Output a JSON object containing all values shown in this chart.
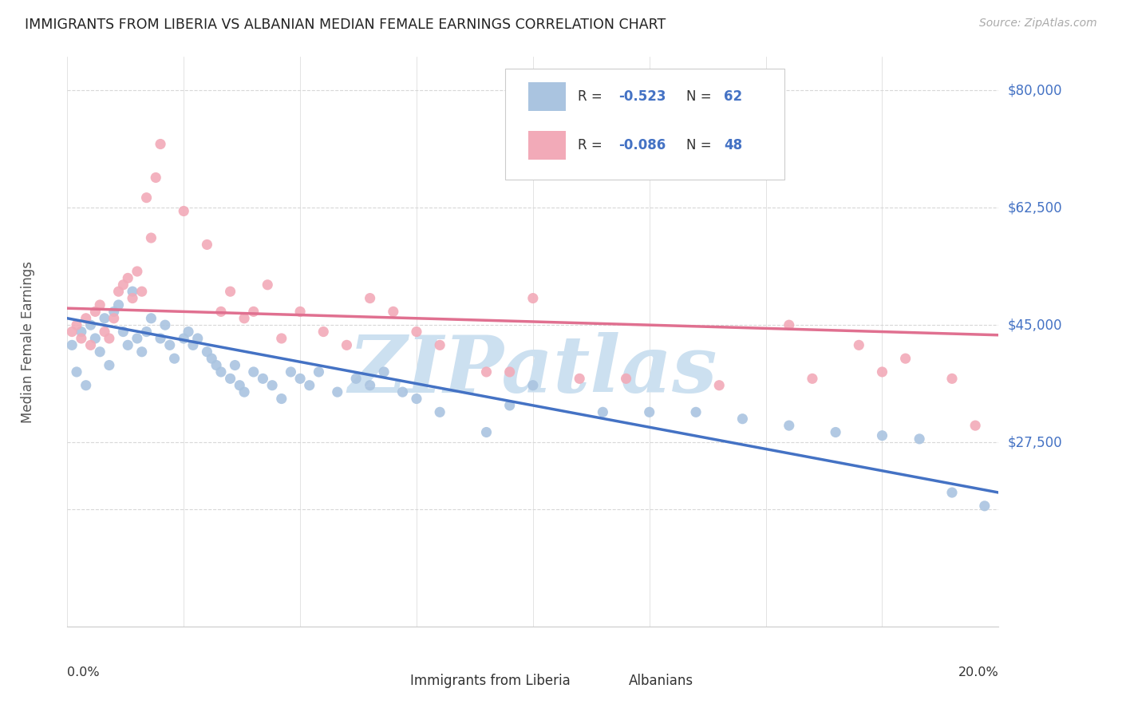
{
  "title": "IMMIGRANTS FROM LIBERIA VS ALBANIAN MEDIAN FEMALE EARNINGS CORRELATION CHART",
  "source": "Source: ZipAtlas.com",
  "ylabel": "Median Female Earnings",
  "xlim": [
    0.0,
    0.2
  ],
  "ylim": [
    0,
    85000
  ],
  "liberia_color": "#aac4e0",
  "albanian_color": "#f2aab8",
  "liberia_line_color": "#4472c4",
  "albanian_line_color": "#e07090",
  "watermark_text": "ZIPatlas",
  "watermark_color": "#cce0f0",
  "background_color": "#ffffff",
  "grid_color": "#d8d8d8",
  "ytick_positions": [
    17500,
    27500,
    45000,
    62500,
    80000
  ],
  "ytick_labels": [
    "",
    "$27,500",
    "$45,000",
    "$62,500",
    "$80,000"
  ],
  "xtick_positions": [
    0.0,
    0.025,
    0.05,
    0.075,
    0.1,
    0.125,
    0.15,
    0.175,
    0.2
  ],
  "liberia_regression": [
    46000,
    20000
  ],
  "albanian_regression": [
    47500,
    43500
  ],
  "liberia_x": [
    0.001,
    0.002,
    0.003,
    0.004,
    0.005,
    0.006,
    0.007,
    0.008,
    0.009,
    0.01,
    0.011,
    0.012,
    0.013,
    0.014,
    0.015,
    0.016,
    0.017,
    0.018,
    0.02,
    0.021,
    0.022,
    0.023,
    0.025,
    0.026,
    0.027,
    0.028,
    0.03,
    0.031,
    0.032,
    0.033,
    0.035,
    0.036,
    0.037,
    0.038,
    0.04,
    0.042,
    0.044,
    0.046,
    0.048,
    0.05,
    0.052,
    0.054,
    0.058,
    0.062,
    0.065,
    0.068,
    0.072,
    0.075,
    0.08,
    0.09,
    0.095,
    0.1,
    0.115,
    0.125,
    0.135,
    0.145,
    0.155,
    0.165,
    0.175,
    0.183,
    0.19,
    0.197
  ],
  "liberia_y": [
    42000,
    38000,
    44000,
    36000,
    45000,
    43000,
    41000,
    46000,
    39000,
    47000,
    48000,
    44000,
    42000,
    50000,
    43000,
    41000,
    44000,
    46000,
    43000,
    45000,
    42000,
    40000,
    43000,
    44000,
    42000,
    43000,
    41000,
    40000,
    39000,
    38000,
    37000,
    39000,
    36000,
    35000,
    38000,
    37000,
    36000,
    34000,
    38000,
    37000,
    36000,
    38000,
    35000,
    37000,
    36000,
    38000,
    35000,
    34000,
    32000,
    29000,
    33000,
    36000,
    32000,
    32000,
    32000,
    31000,
    30000,
    29000,
    28500,
    28000,
    20000,
    18000
  ],
  "albanian_x": [
    0.001,
    0.002,
    0.003,
    0.004,
    0.005,
    0.006,
    0.007,
    0.008,
    0.009,
    0.01,
    0.011,
    0.012,
    0.013,
    0.014,
    0.015,
    0.016,
    0.017,
    0.018,
    0.019,
    0.02,
    0.025,
    0.03,
    0.033,
    0.035,
    0.038,
    0.04,
    0.043,
    0.046,
    0.05,
    0.055,
    0.06,
    0.065,
    0.07,
    0.075,
    0.08,
    0.09,
    0.095,
    0.1,
    0.11,
    0.12,
    0.14,
    0.155,
    0.16,
    0.17,
    0.175,
    0.18,
    0.19,
    0.195
  ],
  "albanian_y": [
    44000,
    45000,
    43000,
    46000,
    42000,
    47000,
    48000,
    44000,
    43000,
    46000,
    50000,
    51000,
    52000,
    49000,
    53000,
    50000,
    64000,
    58000,
    67000,
    72000,
    62000,
    57000,
    47000,
    50000,
    46000,
    47000,
    51000,
    43000,
    47000,
    44000,
    42000,
    49000,
    47000,
    44000,
    42000,
    38000,
    38000,
    49000,
    37000,
    37000,
    36000,
    45000,
    37000,
    42000,
    38000,
    40000,
    37000,
    30000
  ]
}
